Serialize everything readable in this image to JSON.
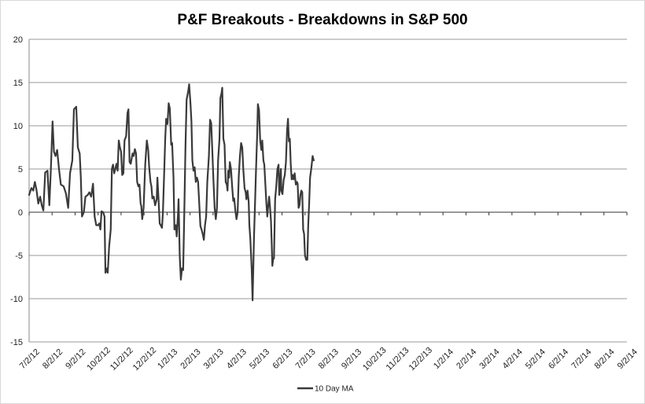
{
  "chart_data": {
    "type": "line",
    "title": "P&F Breakouts - Breakdowns in S&P 500",
    "xlabel": "",
    "ylabel": "",
    "ylim": [
      -15,
      20
    ],
    "yticks": [
      -15,
      -10,
      -5,
      0,
      5,
      10,
      15,
      20
    ],
    "grid": true,
    "legend_position": "bottom-center",
    "x_tick_labels": [
      "7/2/12",
      "8/2/12",
      "9/2/12",
      "10/2/12",
      "11/2/12",
      "12/2/12",
      "1/2/13",
      "2/2/13",
      "3/2/13",
      "4/2/13",
      "5/2/13",
      "6/2/13",
      "7/2/13",
      "8/2/13",
      "9/2/13",
      "10/2/13",
      "11/2/13",
      "12/2/13",
      "1/2/14",
      "2/2/14",
      "3/2/14",
      "4/2/14",
      "5/2/14",
      "6/2/14",
      "7/2/14",
      "8/2/14",
      "9/2/14"
    ],
    "series": [
      {
        "name": "10 Day MA",
        "color": "#3a3a3a",
        "points": [
          [
            0.0,
            2.0
          ],
          [
            0.1,
            2.8
          ],
          [
            0.18,
            2.5
          ],
          [
            0.25,
            3.5
          ],
          [
            0.32,
            2.6
          ],
          [
            0.4,
            1.0
          ],
          [
            0.48,
            1.8
          ],
          [
            0.55,
            0.8
          ],
          [
            0.62,
            0.2
          ],
          [
            0.7,
            4.6
          ],
          [
            0.8,
            4.8
          ],
          [
            0.88,
            0.8
          ],
          [
            0.95,
            5.2
          ],
          [
            1.02,
            10.5
          ],
          [
            1.08,
            7.0
          ],
          [
            1.15,
            6.5
          ],
          [
            1.22,
            7.2
          ],
          [
            1.3,
            5.0
          ],
          [
            1.38,
            3.2
          ],
          [
            1.5,
            3.0
          ],
          [
            1.6,
            2.2
          ],
          [
            1.7,
            0.5
          ],
          [
            1.78,
            4.5
          ],
          [
            1.88,
            6.0
          ],
          [
            1.95,
            11.9
          ],
          [
            2.05,
            12.2
          ],
          [
            2.12,
            7.5
          ],
          [
            2.2,
            6.8
          ],
          [
            2.25,
            4.0
          ],
          [
            2.3,
            -0.5
          ],
          [
            2.38,
            0.0
          ],
          [
            2.45,
            1.8
          ],
          [
            2.55,
            2.0
          ],
          [
            2.62,
            2.3
          ],
          [
            2.7,
            1.8
          ],
          [
            2.78,
            3.3
          ],
          [
            2.85,
            -0.5
          ],
          [
            2.92,
            -1.5
          ],
          [
            3.0,
            -1.5
          ],
          [
            3.05,
            -1.3
          ],
          [
            3.1,
            -2.0
          ],
          [
            3.15,
            0.1
          ],
          [
            3.22,
            0.0
          ],
          [
            3.28,
            -0.5
          ],
          [
            3.32,
            -7.0
          ],
          [
            3.38,
            -6.5
          ],
          [
            3.42,
            -7.0
          ],
          [
            3.48,
            -4.0
          ],
          [
            3.55,
            -2.0
          ],
          [
            3.6,
            5.0
          ],
          [
            3.65,
            5.5
          ],
          [
            3.7,
            4.5
          ],
          [
            3.75,
            5.0
          ],
          [
            3.8,
            5.6
          ],
          [
            3.85,
            4.8
          ],
          [
            3.9,
            8.3
          ],
          [
            3.95,
            7.5
          ],
          [
            4.0,
            7.0
          ],
          [
            4.05,
            4.3
          ],
          [
            4.1,
            4.5
          ],
          [
            4.15,
            8.3
          ],
          [
            4.22,
            8.8
          ],
          [
            4.28,
            11.5
          ],
          [
            4.32,
            11.9
          ],
          [
            4.37,
            5.8
          ],
          [
            4.42,
            5.6
          ],
          [
            4.5,
            6.8
          ],
          [
            4.55,
            6.5
          ],
          [
            4.6,
            7.3
          ],
          [
            4.65,
            6.8
          ],
          [
            4.7,
            3.5
          ],
          [
            4.75,
            3.0
          ],
          [
            4.8,
            3.2
          ],
          [
            4.85,
            1.0
          ],
          [
            4.88,
            0.7
          ],
          [
            4.92,
            -0.8
          ],
          [
            4.98,
            0.5
          ],
          [
            5.05,
            5.5
          ],
          [
            5.12,
            8.3
          ],
          [
            5.18,
            7.2
          ],
          [
            5.22,
            5.3
          ],
          [
            5.28,
            3.5
          ],
          [
            5.32,
            3.0
          ],
          [
            5.36,
            1.6
          ],
          [
            5.42,
            1.8
          ],
          [
            5.48,
            0.8
          ],
          [
            5.55,
            1.5
          ],
          [
            5.58,
            4.0
          ],
          [
            5.62,
            2.0
          ],
          [
            5.68,
            -1.3
          ],
          [
            5.72,
            -1.5
          ],
          [
            5.78,
            -1.8
          ],
          [
            5.82,
            0.0
          ],
          [
            5.88,
            5.0
          ],
          [
            5.92,
            8.5
          ],
          [
            5.96,
            10.8
          ],
          [
            6.02,
            10.2
          ],
          [
            6.07,
            12.6
          ],
          [
            6.12,
            12.0
          ],
          [
            6.18,
            7.8
          ],
          [
            6.22,
            8.0
          ],
          [
            6.28,
            4.0
          ],
          [
            6.32,
            -2.0
          ],
          [
            6.38,
            -1.5
          ],
          [
            6.42,
            -2.8
          ],
          [
            6.48,
            0.0
          ],
          [
            6.5,
            1.5
          ],
          [
            6.52,
            -1.0
          ],
          [
            6.55,
            -5.0
          ],
          [
            6.6,
            -7.8
          ],
          [
            6.65,
            -6.5
          ],
          [
            6.7,
            -6.7
          ],
          [
            6.75,
            0.0
          ],
          [
            6.8,
            7.5
          ],
          [
            6.85,
            13.0
          ],
          [
            6.92,
            14.0
          ],
          [
            6.96,
            14.8
          ],
          [
            7.02,
            12.5
          ],
          [
            7.06,
            10.5
          ],
          [
            7.1,
            6.0
          ],
          [
            7.15,
            4.8
          ],
          [
            7.2,
            5.2
          ],
          [
            7.25,
            3.5
          ],
          [
            7.3,
            4.0
          ],
          [
            7.35,
            3.5
          ],
          [
            7.4,
            1.0
          ],
          [
            7.45,
            -1.6
          ],
          [
            7.5,
            -2.0
          ],
          [
            7.55,
            -2.5
          ],
          [
            7.6,
            -3.2
          ],
          [
            7.65,
            -1.5
          ],
          [
            7.7,
            -0.5
          ],
          [
            7.75,
            3.5
          ],
          [
            7.82,
            6.5
          ],
          [
            7.87,
            10.7
          ],
          [
            7.92,
            10.3
          ],
          [
            7.97,
            7.0
          ],
          [
            8.02,
            3.5
          ],
          [
            8.07,
            0.5
          ],
          [
            8.12,
            -0.8
          ],
          [
            8.17,
            0.5
          ],
          [
            8.22,
            6.0
          ],
          [
            8.28,
            8.5
          ],
          [
            8.32,
            13.2
          ],
          [
            8.37,
            13.8
          ],
          [
            8.4,
            14.4
          ],
          [
            8.45,
            8.5
          ],
          [
            8.5,
            7.8
          ],
          [
            8.55,
            3.5
          ],
          [
            8.6,
            3.2
          ],
          [
            8.63,
            2.5
          ],
          [
            8.66,
            4.8
          ],
          [
            8.7,
            4.0
          ],
          [
            8.73,
            5.8
          ],
          [
            8.78,
            5.0
          ],
          [
            8.83,
            3.0
          ],
          [
            8.88,
            1.3
          ],
          [
            8.92,
            1.6
          ],
          [
            8.97,
            0.2
          ],
          [
            9.02,
            -0.8
          ],
          [
            9.07,
            0.0
          ],
          [
            9.12,
            4.2
          ],
          [
            9.17,
            6.5
          ],
          [
            9.22,
            8.0
          ],
          [
            9.27,
            7.5
          ],
          [
            9.32,
            4.8
          ],
          [
            9.37,
            2.8
          ],
          [
            9.42,
            2.3
          ],
          [
            9.45,
            1.5
          ],
          [
            9.5,
            2.5
          ],
          [
            9.55,
            1.2
          ],
          [
            9.58,
            -1.5
          ],
          [
            9.62,
            -3.0
          ],
          [
            9.68,
            -6.5
          ],
          [
            9.72,
            -10.2
          ],
          [
            9.78,
            -3.0
          ],
          [
            9.82,
            0.5
          ],
          [
            9.87,
            5.0
          ],
          [
            9.92,
            9.0
          ],
          [
            9.95,
            12.5
          ],
          [
            10.0,
            11.8
          ],
          [
            10.05,
            8.3
          ],
          [
            10.1,
            7.2
          ],
          [
            10.14,
            8.3
          ],
          [
            10.19,
            6.0
          ],
          [
            10.23,
            5.5
          ],
          [
            10.28,
            3.0
          ],
          [
            10.32,
            1.0
          ],
          [
            10.36,
            -0.5
          ],
          [
            10.4,
            0.8
          ],
          [
            10.44,
            1.8
          ],
          [
            10.48,
            0.5
          ],
          [
            10.52,
            -1.0
          ],
          [
            10.55,
            -3.5
          ],
          [
            10.58,
            -6.2
          ],
          [
            10.61,
            -5.5
          ],
          [
            10.65,
            -5.3
          ],
          [
            10.7,
            1.5
          ],
          [
            10.75,
            3.0
          ],
          [
            10.8,
            5.0
          ],
          [
            10.85,
            5.5
          ],
          [
            10.88,
            2.0
          ],
          [
            10.92,
            3.5
          ],
          [
            10.95,
            5.0
          ],
          [
            10.97,
            2.5
          ],
          [
            11.02,
            2.1
          ],
          [
            11.07,
            3.7
          ],
          [
            11.12,
            4.3
          ],
          [
            11.17,
            5.8
          ],
          [
            11.22,
            9.5
          ],
          [
            11.26,
            10.8
          ],
          [
            11.3,
            8.2
          ],
          [
            11.34,
            8.5
          ],
          [
            11.38,
            5.5
          ],
          [
            11.42,
            3.8
          ],
          [
            11.46,
            4.3
          ],
          [
            11.5,
            3.8
          ],
          [
            11.55,
            4.5
          ],
          [
            11.6,
            3.2
          ],
          [
            11.65,
            3.5
          ],
          [
            11.68,
            3.3
          ],
          [
            11.72,
            0.5
          ],
          [
            11.76,
            0.8
          ],
          [
            11.8,
            2.0
          ],
          [
            11.84,
            2.5
          ],
          [
            11.88,
            2.3
          ],
          [
            11.92,
            -2.0
          ],
          [
            11.96,
            -2.5
          ],
          [
            12.0,
            -5.0
          ],
          [
            12.05,
            -5.5
          ],
          [
            12.1,
            -5.5
          ],
          [
            12.14,
            -1.5
          ],
          [
            12.18,
            1.0
          ],
          [
            12.22,
            4.0
          ],
          [
            12.28,
            5.2
          ],
          [
            12.33,
            6.5
          ],
          [
            12.38,
            6.0
          ]
        ]
      }
    ]
  }
}
